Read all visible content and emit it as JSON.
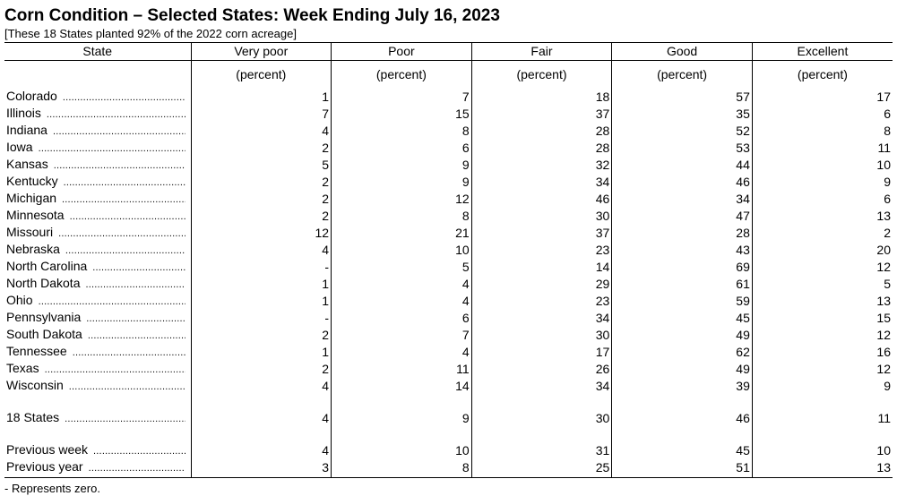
{
  "title": "Corn Condition – Selected States: Week Ending July 16, 2023",
  "subtitle": "[These 18 States planted 92% of the 2022 corn acreage]",
  "table": {
    "columns": [
      "State",
      "Very poor",
      "Poor",
      "Fair",
      "Good",
      "Excellent"
    ],
    "units": [
      "",
      "(percent)",
      "(percent)",
      "(percent)",
      "(percent)",
      "(percent)"
    ],
    "states": [
      {
        "name": "Colorado",
        "values": [
          "1",
          "7",
          "18",
          "57",
          "17"
        ]
      },
      {
        "name": "Illinois",
        "values": [
          "7",
          "15",
          "37",
          "35",
          "6"
        ]
      },
      {
        "name": "Indiana",
        "values": [
          "4",
          "8",
          "28",
          "52",
          "8"
        ]
      },
      {
        "name": "Iowa",
        "values": [
          "2",
          "6",
          "28",
          "53",
          "11"
        ]
      },
      {
        "name": "Kansas",
        "values": [
          "5",
          "9",
          "32",
          "44",
          "10"
        ]
      },
      {
        "name": "Kentucky",
        "values": [
          "2",
          "9",
          "34",
          "46",
          "9"
        ]
      },
      {
        "name": "Michigan",
        "values": [
          "2",
          "12",
          "46",
          "34",
          "6"
        ]
      },
      {
        "name": "Minnesota",
        "values": [
          "2",
          "8",
          "30",
          "47",
          "13"
        ]
      },
      {
        "name": "Missouri",
        "values": [
          "12",
          "21",
          "37",
          "28",
          "2"
        ]
      },
      {
        "name": "Nebraska",
        "values": [
          "4",
          "10",
          "23",
          "43",
          "20"
        ]
      },
      {
        "name": "North Carolina",
        "values": [
          "-",
          "5",
          "14",
          "69",
          "12"
        ]
      },
      {
        "name": "North Dakota",
        "values": [
          "1",
          "4",
          "29",
          "61",
          "5"
        ]
      },
      {
        "name": "Ohio",
        "values": [
          "1",
          "4",
          "23",
          "59",
          "13"
        ]
      },
      {
        "name": "Pennsylvania",
        "values": [
          "-",
          "6",
          "34",
          "45",
          "15"
        ]
      },
      {
        "name": "South Dakota",
        "values": [
          "2",
          "7",
          "30",
          "49",
          "12"
        ]
      },
      {
        "name": "Tennessee",
        "values": [
          "1",
          "4",
          "17",
          "62",
          "16"
        ]
      },
      {
        "name": "Texas",
        "values": [
          "2",
          "11",
          "26",
          "49",
          "12"
        ]
      },
      {
        "name": "Wisconsin",
        "values": [
          "4",
          "14",
          "34",
          "39",
          "9"
        ]
      }
    ],
    "total": {
      "name": "18 States",
      "values": [
        "4",
        "9",
        "30",
        "46",
        "11"
      ]
    },
    "comparisons": [
      {
        "name": "Previous week",
        "values": [
          "4",
          "10",
          "31",
          "45",
          "10"
        ]
      },
      {
        "name": "Previous year",
        "values": [
          "3",
          "8",
          "25",
          "51",
          "13"
        ]
      }
    ]
  },
  "footnote": "- Represents zero."
}
